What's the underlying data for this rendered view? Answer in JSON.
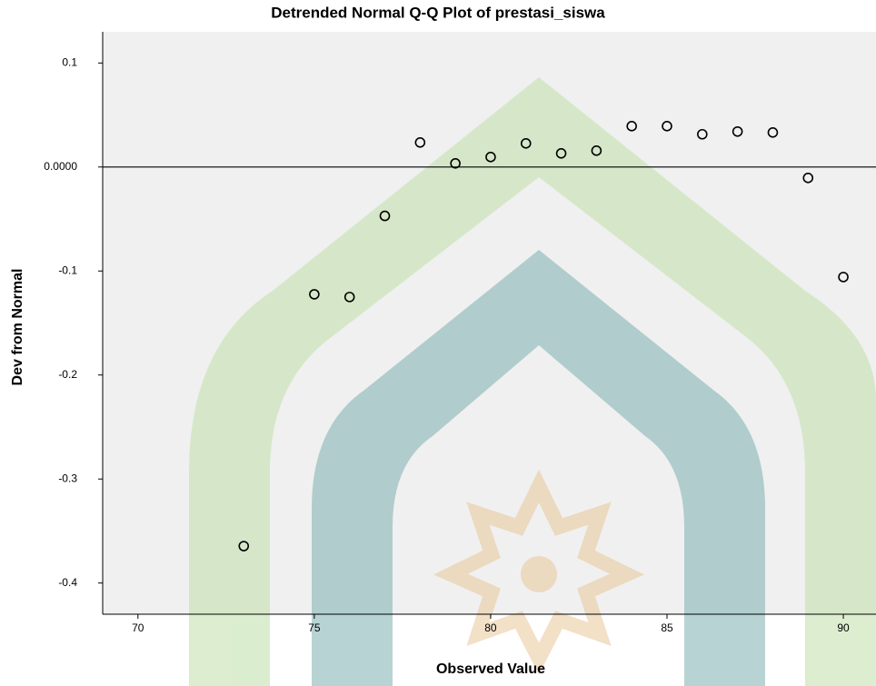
{
  "chart_data": {
    "type": "scatter",
    "title": "Detrended Normal Q-Q Plot of prestasi_siswa",
    "x_label": "Observed Value",
    "y_label": "Dev from Normal",
    "x": [
      73,
      75,
      76,
      77,
      78,
      79,
      80,
      81,
      82,
      83,
      84,
      85,
      86,
      87,
      88,
      89,
      90
    ],
    "values": [
      -0.3645,
      -0.1224,
      -0.125,
      -0.047,
      0.0236,
      0.0035,
      0.0096,
      0.0227,
      0.0131,
      0.0157,
      0.0393,
      0.0393,
      0.0315,
      0.0341,
      0.0332,
      -0.0105,
      -0.1058
    ],
    "color": "#000000",
    "xlim": [
      69,
      90.9
    ],
    "ylim": [
      -0.43,
      0.13
    ],
    "xticks": [
      70,
      75,
      80,
      85,
      90
    ],
    "yticks": [
      0.1,
      {
        "value": 0,
        "label": "0.0000"
      },
      -0.1,
      -0.2,
      -0.3,
      -0.4
    ]
  }
}
